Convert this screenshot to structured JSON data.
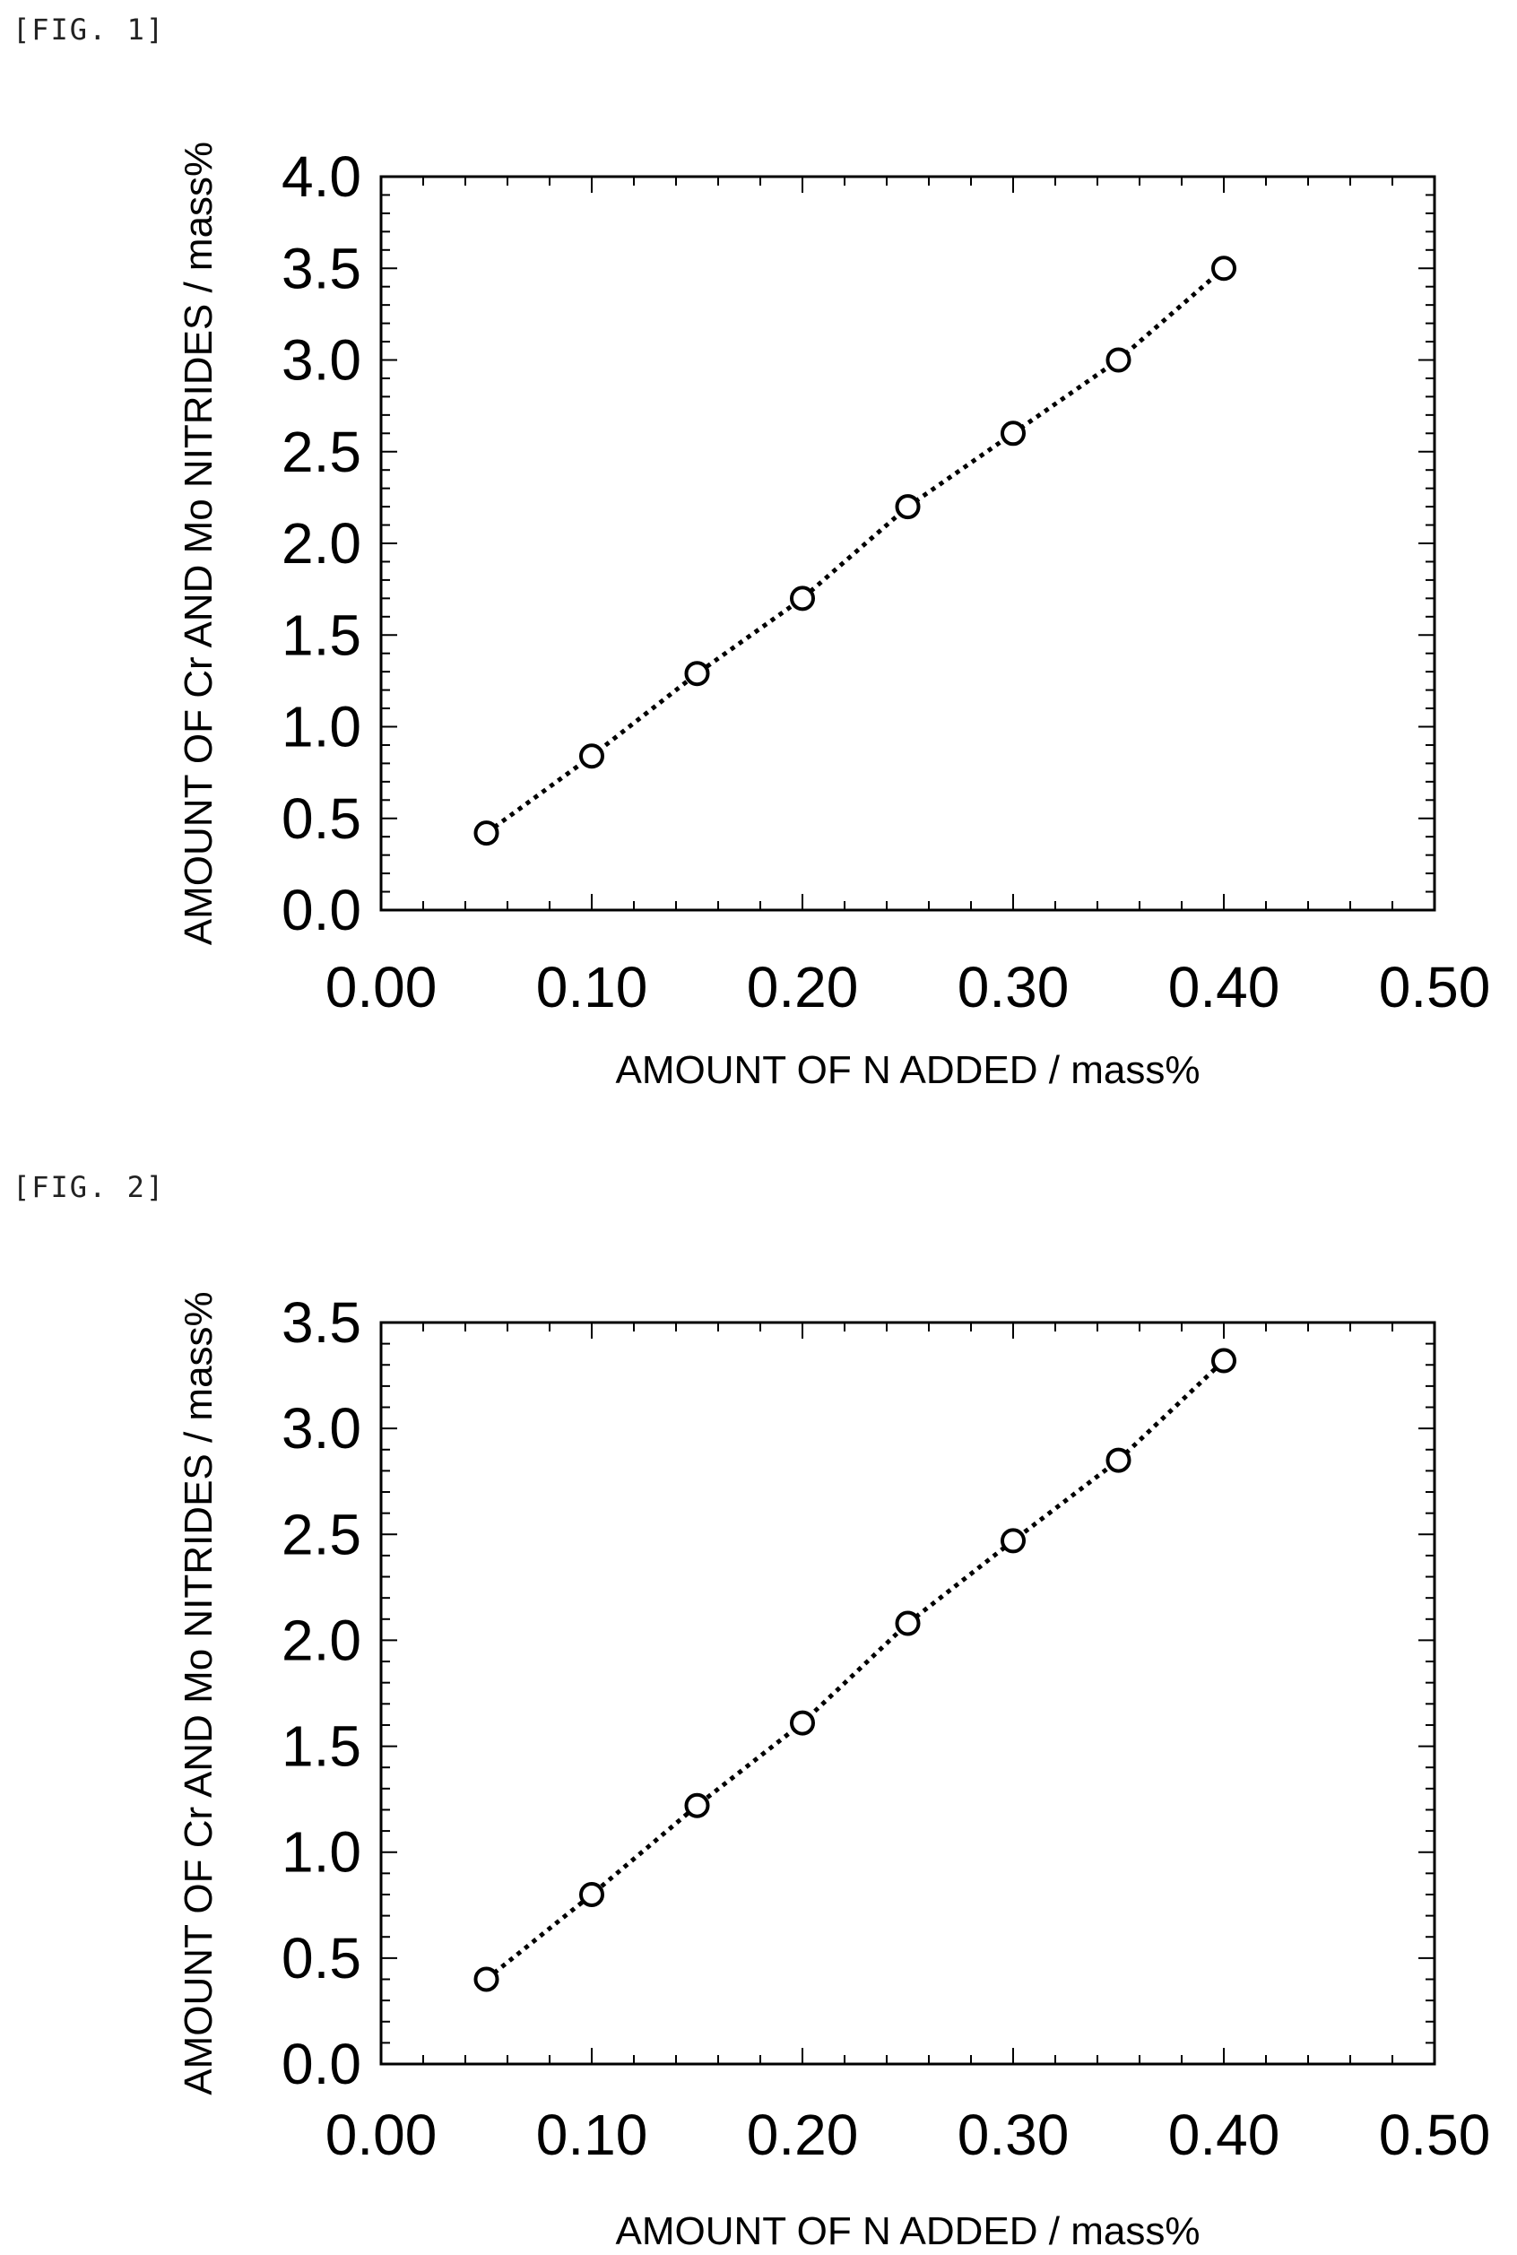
{
  "figures": [
    {
      "label": "[FIG. 1]"
    },
    {
      "label": "[FIG. 2]"
    }
  ],
  "chart_data": [
    {
      "type": "scatter",
      "title": "",
      "xlabel": "AMOUNT OF N ADDED / mass%",
      "ylabel": "AMOUNT OF Cr AND Mo NITRIDES / mass%",
      "xlim": [
        0.0,
        0.5
      ],
      "ylim": [
        0.0,
        4.0
      ],
      "x_ticks": [
        "0.00",
        "0.10",
        "0.20",
        "0.30",
        "0.40",
        "0.50"
      ],
      "y_ticks": [
        "0.0",
        "0.5",
        "1.0",
        "1.5",
        "2.0",
        "2.5",
        "3.0",
        "3.5",
        "4.0"
      ],
      "grid": false,
      "marker": "open-circle",
      "trendline": "dotted",
      "series": [
        {
          "x": [
            0.05,
            0.1,
            0.15,
            0.2,
            0.25,
            0.3,
            0.35,
            0.4
          ],
          "y": [
            0.42,
            0.84,
            1.29,
            1.7,
            2.2,
            2.6,
            3.0,
            3.5
          ]
        }
      ]
    },
    {
      "type": "scatter",
      "title": "",
      "xlabel": "AMOUNT OF N ADDED / mass%",
      "ylabel": "AMOUNT OF Cr AND Mo NITRIDES / mass%",
      "xlim": [
        0.0,
        0.5
      ],
      "ylim": [
        0.0,
        3.5
      ],
      "x_ticks": [
        "0.00",
        "0.10",
        "0.20",
        "0.30",
        "0.40",
        "0.50"
      ],
      "y_ticks": [
        "0.0",
        "0.5",
        "1.0",
        "1.5",
        "2.0",
        "2.5",
        "3.0",
        "3.5"
      ],
      "grid": false,
      "marker": "open-circle",
      "trendline": "dotted",
      "series": [
        {
          "x": [
            0.05,
            0.1,
            0.15,
            0.2,
            0.25,
            0.3,
            0.35,
            0.4
          ],
          "y": [
            0.4,
            0.8,
            1.22,
            1.61,
            2.08,
            2.47,
            2.85,
            3.32
          ]
        }
      ]
    }
  ]
}
